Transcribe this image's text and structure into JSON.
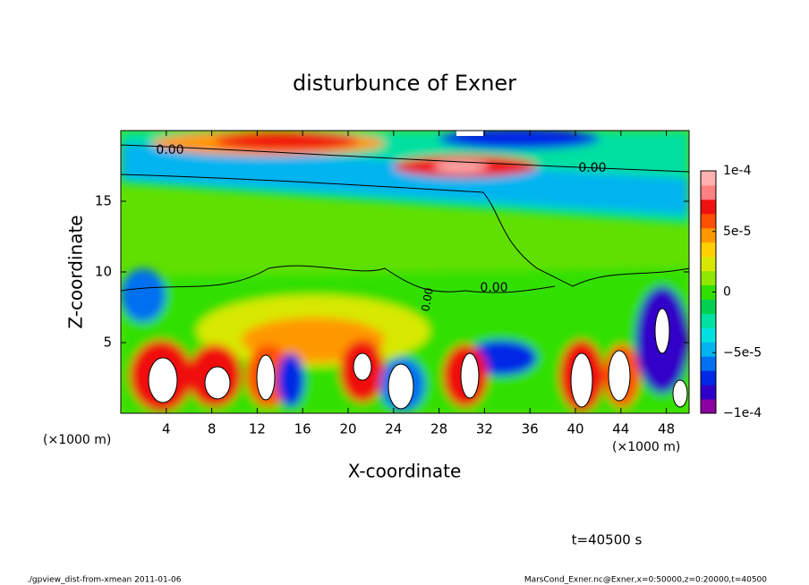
{
  "chart_data": {
    "type": "contour",
    "title": "disturbunce of Exner",
    "x_label": "X-coordinate",
    "y_label": "Z-coordinate",
    "x_unit_left": "(×1000 m)",
    "x_unit_right": "(×1000 m)",
    "xlim": [
      0,
      50
    ],
    "xticks": [
      4,
      8,
      12,
      16,
      20,
      24,
      28,
      32,
      36,
      40,
      44,
      48
    ],
    "ylim": [
      0,
      20
    ],
    "yticks": [
      5,
      10,
      15
    ],
    "contour_labels": [
      "0.00",
      "0.00",
      "0.00",
      "0.00"
    ],
    "colorbar": {
      "lim": [
        -0.0001,
        0.0001
      ],
      "ticks": [
        {
          "value": 0.0001,
          "label": "1e-4"
        },
        {
          "value": 5e-05,
          "label": "5e-5"
        },
        {
          "value": 0,
          "label": "0"
        },
        {
          "value": -5e-05,
          "label": "−5e-5"
        },
        {
          "value": -0.0001,
          "label": "−1e-4"
        }
      ],
      "colors": [
        "#8a00a0",
        "#3000c8",
        "#0028e6",
        "#0070f0",
        "#00b4f0",
        "#00e0e0",
        "#00e0a0",
        "#00d050",
        "#30e000",
        "#90e800",
        "#d8e800",
        "#ffd000",
        "#ff9800",
        "#ff5000",
        "#f01010",
        "#ff8080",
        "#ffb0b0"
      ]
    },
    "time_label": "t=40500 s",
    "footer_left": "./gpview_dist-from-xmean  2011-01-06",
    "footer_right": "MarsCond_Exner.nc@Exner,x=0:50000,z=0:20000,t=40500"
  }
}
